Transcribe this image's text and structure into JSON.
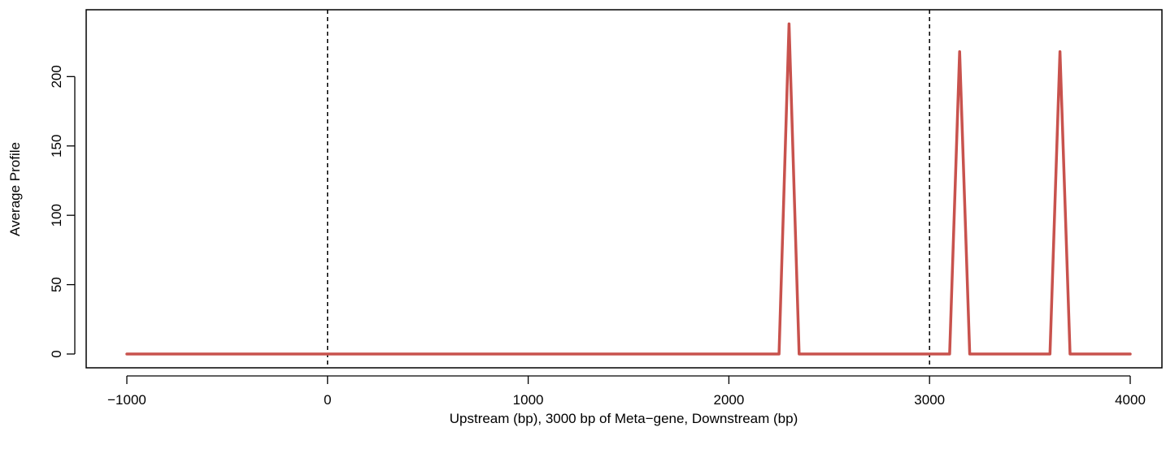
{
  "chart_data": {
    "type": "line",
    "title": "",
    "xlabel": "Upstream (bp), 3000 bp of Meta−gene, Downstream (bp)",
    "ylabel": "Average Profile",
    "xlim": [
      -1000,
      4000
    ],
    "ylim": [
      0,
      240
    ],
    "xticks": [
      -1000,
      0,
      1000,
      2000,
      3000,
      4000
    ],
    "xtick_labels": [
      "−1000",
      "0",
      "1000",
      "2000",
      "3000",
      "4000"
    ],
    "yticks": [
      0,
      50,
      100,
      150,
      200
    ],
    "ytick_labels": [
      "0",
      "50",
      "100",
      "150",
      "200"
    ],
    "vlines": [
      0,
      3000
    ],
    "grid": false,
    "legend": "none",
    "series": [
      {
        "color": "#c8524d",
        "x": [
          -1000,
          2250,
          2300,
          2350,
          3100,
          3150,
          3200,
          3600,
          3650,
          3700,
          4000
        ],
        "y": [
          0,
          0,
          238,
          0,
          0,
          218,
          0,
          0,
          218,
          0,
          0
        ]
      }
    ]
  }
}
